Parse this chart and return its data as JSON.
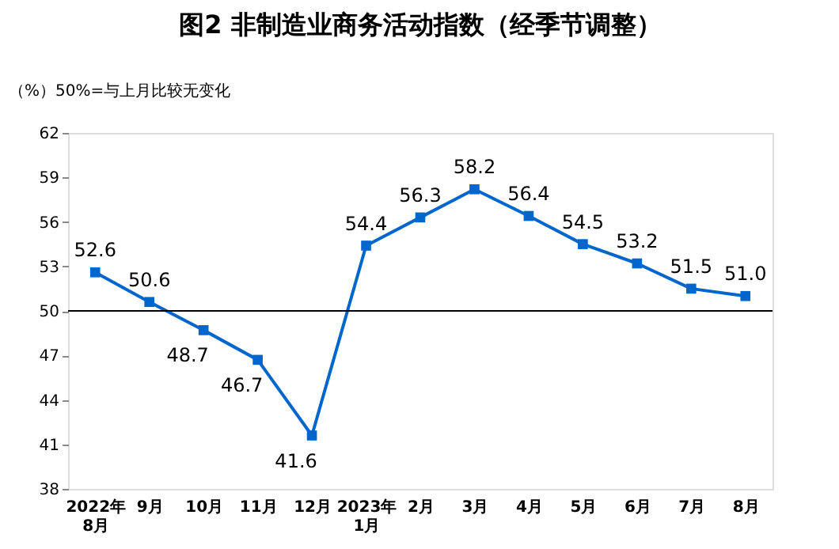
{
  "chart_data": {
    "type": "line",
    "title": "图2  非制造业商务活动指数（经季节调整）",
    "ylabel": "（%）50%=与上月比较无变化",
    "categories": [
      "2022年\n8月",
      "9月",
      "10月",
      "11月",
      "12月",
      "2023年\n1月",
      "2月",
      "3月",
      "4月",
      "5月",
      "6月",
      "7月",
      "8月"
    ],
    "series": [
      {
        "color": "#0066cc",
        "values": [
          52.6,
          50.6,
          48.7,
          46.7,
          41.6,
          54.4,
          56.3,
          58.2,
          56.4,
          54.5,
          53.2,
          51.5,
          51.0
        ]
      }
    ],
    "ylim": [
      38,
      62
    ],
    "yticks": [
      38,
      41,
      44,
      47,
      50,
      53,
      56,
      59,
      62
    ],
    "ref_lines": [
      {
        "axis": "y",
        "value": 50,
        "color": "#000000"
      }
    ],
    "value_labels": [
      "52.6",
      "50.6",
      "48.7",
      "46.7",
      "41.6",
      "54.4",
      "56.3",
      "58.2",
      "56.4",
      "54.5",
      "53.2",
      "51.5",
      "51.0"
    ],
    "marker": "square",
    "line_style": "solid",
    "grid": false
  }
}
